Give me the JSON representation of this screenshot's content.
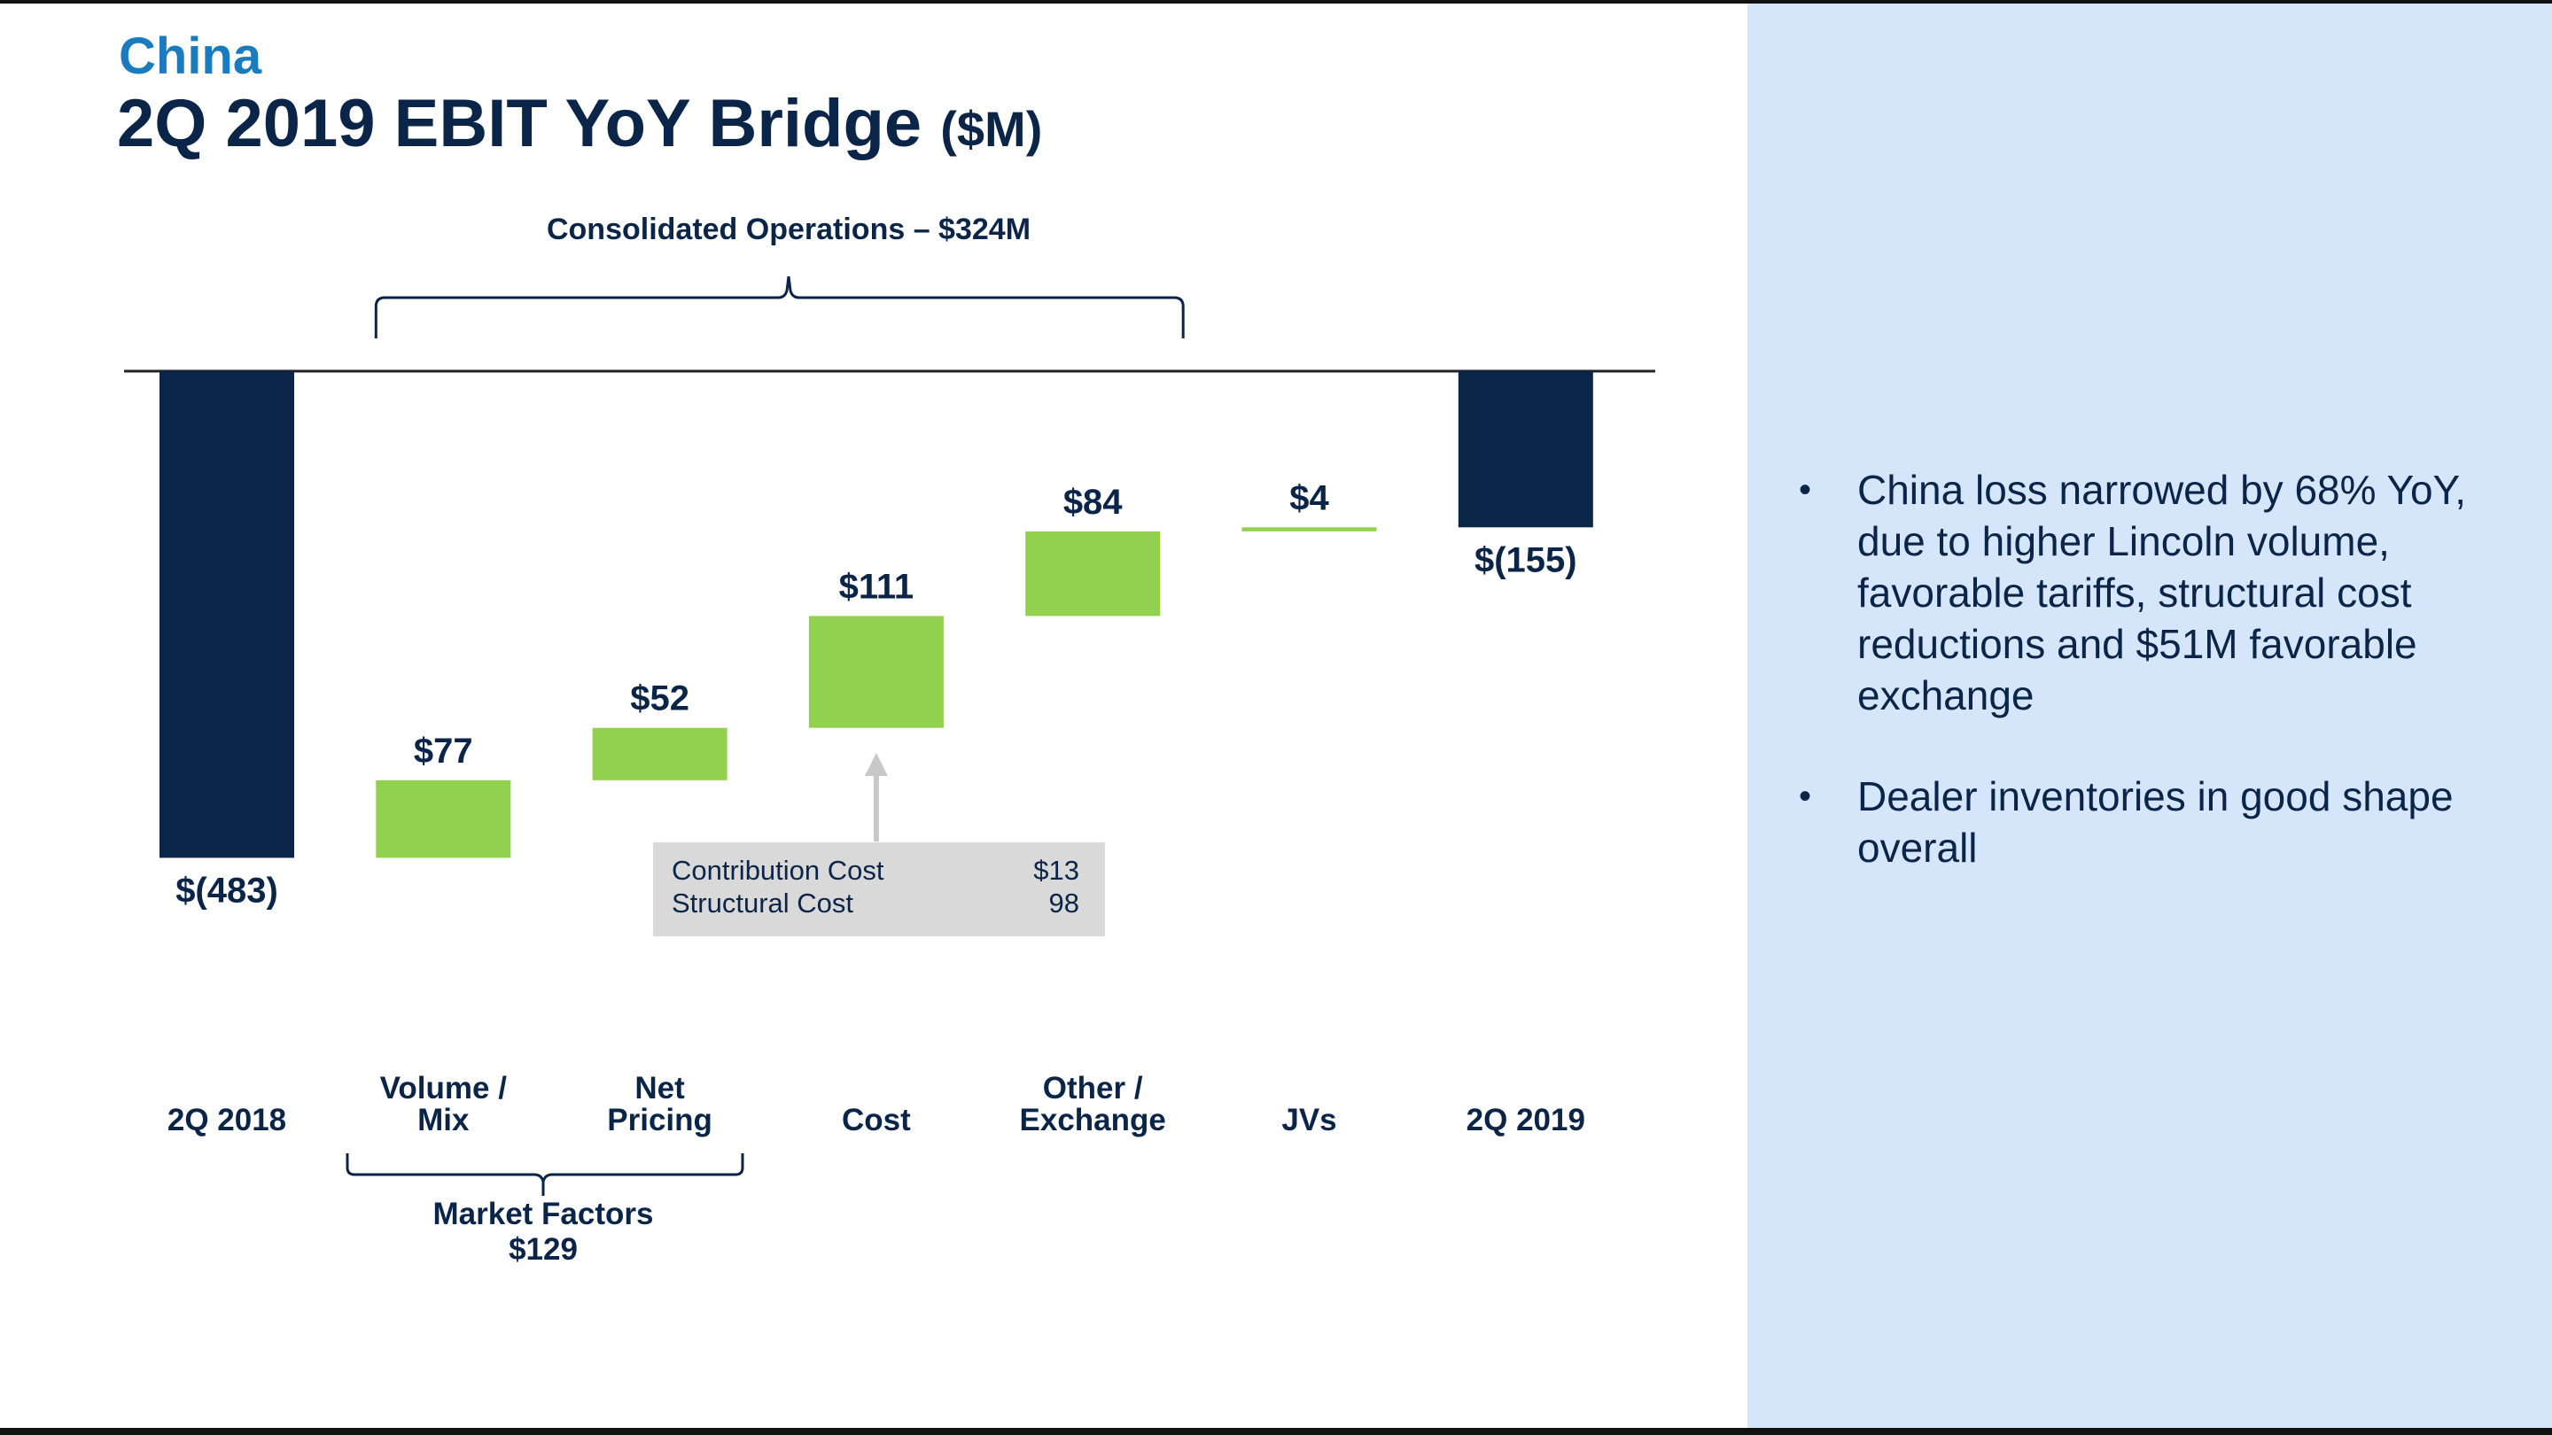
{
  "header": {
    "section": "China",
    "title": "2Q 2019 EBIT YoY Bridge",
    "title_unit": "($M)"
  },
  "chart_data": {
    "type": "bar",
    "subtype": "waterfall",
    "categories": [
      {
        "lines": [
          "2Q 2018"
        ]
      },
      {
        "lines": [
          "Volume /",
          "Mix"
        ]
      },
      {
        "lines": [
          "Net",
          "Pricing"
        ]
      },
      {
        "lines": [
          "Cost"
        ]
      },
      {
        "lines": [
          "Other /",
          "Exchange"
        ]
      },
      {
        "lines": [
          "JVs"
        ]
      },
      {
        "lines": [
          "2Q 2019"
        ]
      }
    ],
    "values": [
      -483,
      77,
      52,
      111,
      84,
      4,
      -155
    ],
    "value_labels": [
      "$(483)",
      "$77",
      "$52",
      "$111",
      "$84",
      "$4",
      "$(155)"
    ],
    "kinds": [
      "total",
      "delta",
      "delta",
      "delta",
      "delta",
      "delta",
      "total"
    ],
    "colors": {
      "total": "#0b2548",
      "delta": "#92d050",
      "label": "#0b2548"
    },
    "ylim": [
      -560,
      0
    ],
    "groups": {
      "consolidated": {
        "label": "Consolidated Operations – $324M",
        "from": 1,
        "to": 4
      },
      "market": {
        "label_lines": [
          "Market Factors",
          "$129"
        ],
        "from": 1,
        "to": 2
      }
    },
    "callout": {
      "for": 3,
      "rows": [
        {
          "label": "Contribution Cost",
          "value": "$13"
        },
        {
          "label": "Structural Cost",
          "value": "98"
        }
      ]
    }
  },
  "bullets": [
    "China loss narrowed by 68% YoY, due to higher Lincoln volume, favorable tariffs, structural cost reductions and $51M favorable exchange",
    "Dealer inventories in good shape overall"
  ]
}
